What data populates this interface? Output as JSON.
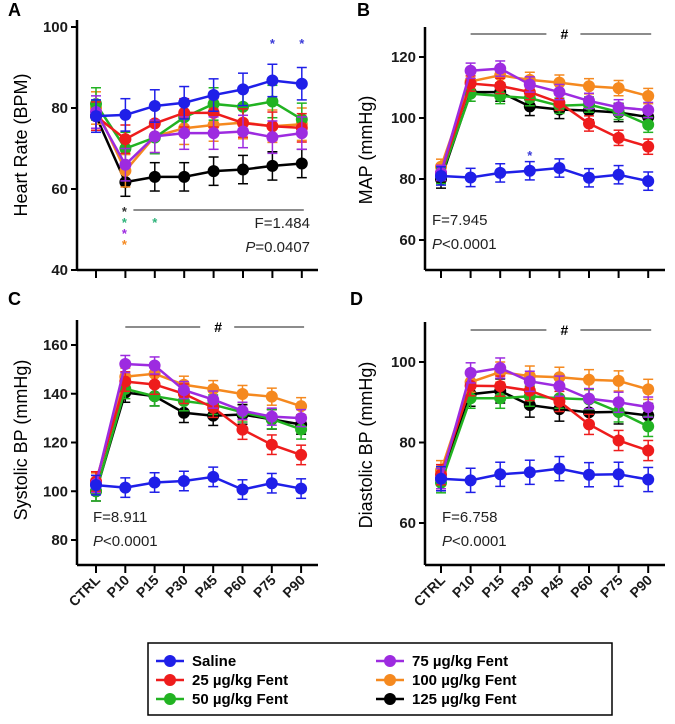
{
  "chart_data": [
    {
      "type": "line",
      "panel": "A",
      "ylabel": "Heart Rate (BPM)",
      "ylim": [
        40,
        100
      ],
      "yticks": [
        40,
        60,
        80,
        100
      ],
      "categories": [
        "CTRL",
        "P10",
        "P15",
        "P30",
        "P45",
        "P60",
        "P75",
        "P90"
      ],
      "show_xtick_labels": false,
      "stat_f": "F=1.484",
      "stat_p_symbol": "P",
      "stat_p_rest": "=0.0407",
      "series": [
        {
          "name": "Saline",
          "values": [
            78,
            78.3,
            80.5,
            81.3,
            83.2,
            84.6,
            86.8,
            86
          ],
          "sem": 4
        },
        {
          "name": "25 µg/kg Fent",
          "values": [
            78,
            72.3,
            76.2,
            78.8,
            78.8,
            76.3,
            75.5,
            75.1
          ],
          "sem": 3.5
        },
        {
          "name": "50 µg/kg Fent",
          "values": [
            81,
            70,
            72.7,
            77.7,
            81,
            80.3,
            81.6,
            77.2
          ],
          "sem": 4
        },
        {
          "name": "75 µg/kg Fent",
          "values": [
            79,
            66,
            73,
            73.8,
            73.8,
            74.2,
            72.8,
            73.8
          ],
          "sem": 4
        },
        {
          "name": "100 µg/kg Fent",
          "values": [
            80,
            64.5,
            73,
            75,
            75.8,
            76.4,
            75.5,
            76
          ],
          "sem": 4
        },
        {
          "name": "125 µg/kg Fent",
          "values": [
            78,
            61.7,
            63,
            63,
            64.4,
            64.8,
            65.7,
            66.3
          ],
          "sem": 3.5
        }
      ],
      "annotations": {
        "significance_mark": "*",
        "hash_mark": ""
      }
    },
    {
      "type": "line",
      "panel": "B",
      "ylabel": "MAP (mmHg)",
      "ylim": [
        52,
        130
      ],
      "yticks": [
        60,
        80,
        100,
        120
      ],
      "categories": [
        "CTRL",
        "P10",
        "P15",
        "P30",
        "P45",
        "P60",
        "P75",
        "P90"
      ],
      "show_xtick_labels": false,
      "stat_f": "F=7.945",
      "stat_p_symbol": "P",
      "stat_p_rest": "<0.0001",
      "series": [
        {
          "name": "Saline",
          "values": [
            81,
            80.5,
            82,
            82.7,
            83.6,
            80.4,
            81.4,
            79.3
          ],
          "sem": 3
        },
        {
          "name": "25 µg/kg Fent",
          "values": [
            82,
            111.3,
            110.5,
            108.5,
            105,
            98.2,
            93.5,
            90.6
          ],
          "sem": 2.5
        },
        {
          "name": "50 µg/kg Fent",
          "values": [
            81,
            108,
            107.2,
            106.5,
            104,
            104.4,
            102,
            97.8
          ],
          "sem": 2.5
        },
        {
          "name": "75 µg/kg Fent",
          "values": [
            82,
            115.5,
            116.2,
            111,
            108.5,
            105.6,
            103.5,
            102.6
          ],
          "sem": 2.5
        },
        {
          "name": "100 µg/kg Fent",
          "values": [
            84,
            112,
            114,
            112.5,
            111.6,
            110.4,
            109.8,
            107.2
          ],
          "sem": 2.5
        },
        {
          "name": "125 µg/kg Fent",
          "values": [
            80,
            108.5,
            108.5,
            103.8,
            102.8,
            102.4,
            101.8,
            100.3
          ],
          "sem": 3
        }
      ],
      "annotations": {
        "significance_mark": "*",
        "hash_mark": "#"
      }
    },
    {
      "type": "line",
      "panel": "C",
      "ylabel": "Systolic BP (mmHg)",
      "ylim": [
        70,
        170
      ],
      "yticks": [
        80,
        100,
        120,
        140,
        160
      ],
      "categories": [
        "CTRL",
        "P10",
        "P15",
        "P30",
        "P45",
        "P60",
        "P75",
        "P90"
      ],
      "show_xtick_labels": true,
      "stat_f": "F=8.911",
      "stat_p_symbol": "P",
      "stat_p_rest": "<0.0001",
      "series": [
        {
          "name": "Saline",
          "values": [
            102.5,
            101.5,
            103.6,
            104.2,
            105.9,
            100.7,
            103.3,
            101.1
          ],
          "sem": 4
        },
        {
          "name": "25 µg/kg Fent",
          "values": [
            104,
            145,
            143.8,
            140,
            134.3,
            125.3,
            119.1,
            114.9
          ],
          "sem": 4
        },
        {
          "name": "50 µg/kg Fent",
          "values": [
            100,
            142,
            139,
            137,
            135.5,
            132.4,
            129.6,
            125.4
          ],
          "sem": 4
        },
        {
          "name": "75 µg/kg Fent",
          "values": [
            103,
            152.2,
            151.6,
            141.5,
            137.6,
            133,
            130.6,
            130
          ],
          "sem": 3.5
        },
        {
          "name": "100 µg/kg Fent",
          "values": [
            104,
            147,
            148.2,
            143.7,
            141.9,
            139.9,
            138.8,
            134.9
          ],
          "sem": 3.5
        },
        {
          "name": "125 µg/kg Fent",
          "values": [
            100,
            140.5,
            139,
            132.2,
            131,
            131.5,
            129.5,
            127.4
          ],
          "sem": 4
        }
      ],
      "annotations": {
        "significance_mark": "",
        "hash_mark": "#"
      }
    },
    {
      "type": "line",
      "panel": "D",
      "ylabel": "Diastolic BP (mmHg)",
      "ylim": [
        50,
        110
      ],
      "yticks": [
        60,
        80,
        100
      ],
      "categories": [
        "CTRL",
        "P10",
        "P15",
        "P30",
        "P45",
        "P60",
        "P75",
        "P90"
      ],
      "show_xtick_labels": true,
      "stat_f": "F=6.758",
      "stat_p_symbol": "P",
      "stat_p_rest": "<0.0001",
      "series": [
        {
          "name": "Saline",
          "values": [
            71,
            70.6,
            72.1,
            72.6,
            73.5,
            72,
            72.1,
            70.8
          ],
          "sem": 3
        },
        {
          "name": "25 µg/kg Fent",
          "values": [
            72,
            94.1,
            94,
            92.9,
            90.2,
            84.5,
            80.5,
            78
          ],
          "sem": 2.5
        },
        {
          "name": "50 µg/kg Fent",
          "values": [
            70,
            91,
            91,
            91.5,
            91,
            90.7,
            87.6,
            84
          ],
          "sem": 2.5
        },
        {
          "name": "75 µg/kg Fent",
          "values": [
            71,
            97.3,
            98.5,
            95.2,
            94,
            90.9,
            90,
            88.8
          ],
          "sem": 2.5
        },
        {
          "name": "100 µg/kg Fent",
          "values": [
            73,
            95,
            97.5,
            96.5,
            96.2,
            95.6,
            95.3,
            93.2
          ],
          "sem": 2.5
        },
        {
          "name": "125 µg/kg Fent",
          "values": [
            71,
            92,
            92.8,
            89.3,
            88.3,
            87.5,
            87.6,
            86.7
          ],
          "sem": 3
        }
      ],
      "annotations": {
        "significance_mark": "",
        "hash_mark": "#"
      }
    }
  ],
  "legend": {
    "placement": "bottom",
    "items": [
      "Saline",
      "25 µg/kg Fent",
      "50 µg/kg Fent",
      "75 µg/kg Fent",
      "100 µg/kg Fent",
      "125 µg/kg Fent"
    ]
  },
  "colors": [
    "#1f1fe8",
    "#ee1c1c",
    "#22b322",
    "#9d2be0",
    "#f5891f",
    "#000000"
  ],
  "star_colors": {
    "black": "#333333",
    "green": "#2fb27a",
    "purple": "#9d2be0",
    "orange": "#f5891f",
    "blue": "#3a3ad8"
  }
}
